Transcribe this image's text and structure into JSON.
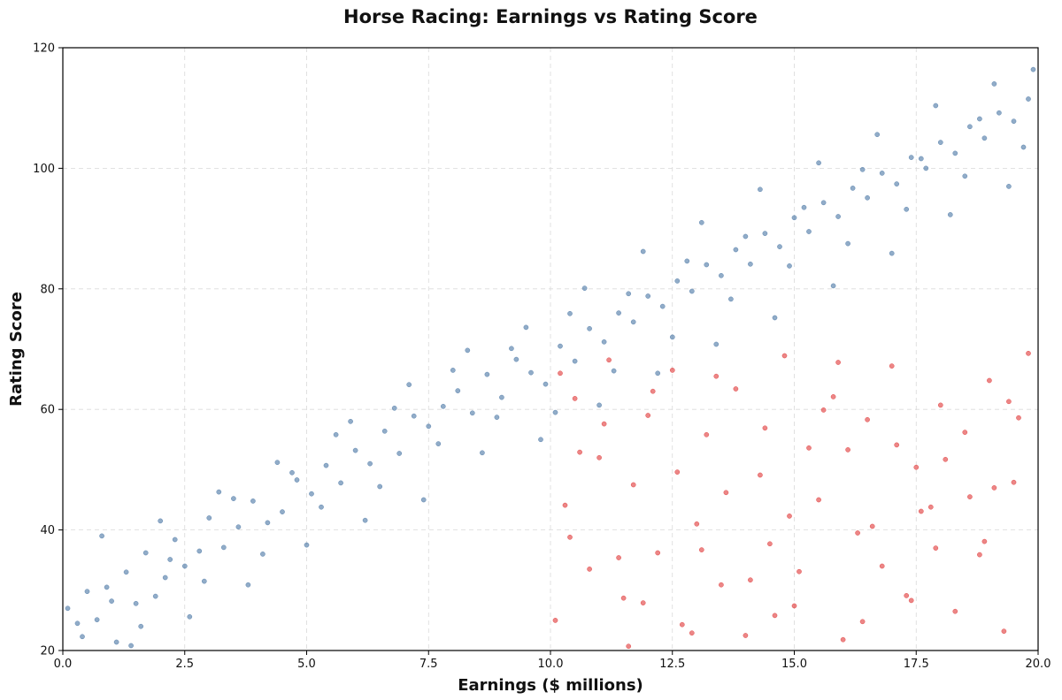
{
  "chart_data": {
    "type": "scatter",
    "title": "Horse Racing: Earnings vs Rating Score",
    "xlabel": "Earnings ($ millions)",
    "ylabel": "Rating Score",
    "xlim": [
      0,
      20
    ],
    "ylim": [
      20,
      120
    ],
    "x_ticks": [
      0.0,
      2.5,
      5.0,
      7.5,
      10.0,
      12.5,
      15.0,
      17.5,
      20.0
    ],
    "x_tick_labels": [
      "0.0",
      "2.5",
      "5.0",
      "7.5",
      "10.0",
      "12.5",
      "15.0",
      "17.5",
      "20.0"
    ],
    "y_ticks": [
      20,
      40,
      60,
      80,
      100,
      120
    ],
    "y_tick_labels": [
      "20",
      "40",
      "60",
      "80",
      "100",
      "120"
    ],
    "grid": true,
    "series": [
      {
        "color": "#4e79a7",
        "trend": "rating ≈ 25 + 4.5 × earnings, points clipped to axis range",
        "x": [
          0.1,
          0.3,
          0.5,
          0.7,
          0.9,
          1.1,
          1.3,
          1.5,
          1.7,
          1.9,
          2.1,
          2.3,
          2.5,
          2.8,
          3.0,
          3.3,
          3.6,
          3.9,
          4.2,
          4.5,
          4.8,
          5.1,
          5.4,
          5.7,
          6.0,
          6.3,
          6.6,
          6.9,
          7.2,
          7.5,
          7.8,
          8.1,
          8.4,
          8.7,
          9.0,
          9.3,
          9.6,
          9.9,
          10.2,
          10.5,
          10.8,
          11.1,
          11.4,
          11.7,
          12.0,
          12.3,
          12.6,
          12.9,
          13.2,
          13.5,
          13.8,
          14.1,
          14.4,
          14.7,
          15.0,
          15.3,
          15.6,
          15.9,
          16.2,
          16.5,
          16.8,
          17.1,
          17.4,
          17.7,
          18.0,
          18.3,
          18.6,
          18.9,
          19.2,
          19.5,
          19.8,
          0.4,
          1.0,
          1.6,
          2.2,
          2.9,
          3.5,
          4.1,
          4.7,
          5.3,
          5.9,
          6.5,
          7.1,
          7.7,
          8.3,
          8.9,
          9.5,
          10.1,
          10.7,
          11.3,
          11.9,
          12.5,
          13.1,
          13.7,
          14.3,
          14.9,
          15.5,
          16.1,
          16.7,
          17.3,
          17.9,
          18.5,
          19.1,
          19.7,
          0.8,
          2.0,
          3.2,
          4.4,
          5.6,
          6.8,
          8.0,
          9.2,
          10.4,
          11.6,
          12.8,
          14.0,
          15.2,
          16.4,
          17.6,
          18.8,
          19.9,
          1.4,
          2.6,
          3.8,
          5.0,
          6.2,
          7.4,
          8.6,
          9.8,
          11.0,
          12.2,
          13.4,
          14.6,
          15.8,
          17.0,
          18.2,
          19.4
        ],
        "y": [
          27.0,
          24.5,
          29.8,
          25.1,
          30.5,
          21.4,
          33.0,
          27.8,
          36.2,
          29.0,
          32.1,
          38.4,
          34.0,
          36.5,
          42.0,
          37.1,
          40.5,
          44.8,
          41.2,
          43.0,
          48.3,
          46.0,
          50.7,
          47.8,
          53.2,
          51.0,
          56.4,
          52.7,
          58.9,
          57.2,
          60.5,
          63.1,
          59.4,
          65.8,
          62.0,
          68.3,
          66.1,
          64.2,
          70.5,
          68.0,
          73.4,
          71.2,
          76.0,
          74.5,
          78.8,
          77.1,
          81.3,
          79.6,
          84.0,
          82.2,
          86.5,
          84.1,
          89.2,
          87.0,
          91.8,
          89.5,
          94.3,
          92.0,
          96.7,
          95.1,
          99.2,
          97.4,
          101.8,
          100.0,
          104.3,
          102.5,
          106.9,
          105.0,
          109.2,
          107.8,
          111.5,
          22.3,
          28.2,
          24.0,
          35.1,
          31.5,
          45.2,
          36.0,
          49.5,
          43.8,
          58.0,
          47.2,
          64.1,
          54.3,
          69.8,
          58.7,
          73.6,
          59.5,
          80.1,
          66.4,
          86.2,
          72.0,
          91.0,
          78.3,
          96.5,
          83.8,
          100.9,
          87.5,
          105.6,
          93.2,
          110.4,
          98.7,
          114.0,
          103.5,
          39.0,
          41.5,
          46.3,
          51.2,
          55.8,
          60.2,
          66.5,
          70.1,
          75.9,
          79.2,
          84.6,
          88.7,
          93.5,
          99.8,
          101.6,
          108.2,
          116.4,
          20.8,
          25.6,
          30.9,
          37.5,
          41.6,
          45.0,
          52.8,
          55.0,
          60.7,
          66.0,
          70.8,
          75.2,
          80.5,
          85.9,
          92.3,
          97.0
        ]
      },
      {
        "color": "#e03b3b",
        "trend": "scattered cluster for earnings 10–20, rating 20–70",
        "x": [
          10.1,
          10.3,
          10.5,
          10.8,
          11.0,
          11.2,
          11.5,
          11.7,
          12.0,
          12.2,
          12.5,
          12.7,
          13.0,
          13.2,
          13.5,
          13.8,
          14.0,
          14.3,
          14.5,
          14.8,
          15.0,
          15.3,
          15.5,
          15.8,
          16.0,
          16.3,
          16.5,
          16.8,
          17.0,
          17.3,
          17.5,
          17.8,
          18.0,
          18.3,
          18.5,
          18.8,
          19.0,
          19.3,
          19.5,
          19.8,
          10.4,
          11.1,
          11.9,
          12.6,
          13.4,
          14.1,
          14.9,
          15.6,
          16.4,
          17.1,
          17.9,
          18.6,
          19.4,
          10.6,
          11.4,
          12.1,
          12.9,
          13.6,
          14.4,
          15.1,
          15.9,
          16.6,
          17.4,
          18.1,
          18.9,
          19.6,
          10.2,
          11.6,
          13.1,
          14.6,
          16.1,
          17.6,
          19.1
        ],
        "y": [
          25.0,
          44.1,
          61.8,
          33.5,
          52.0,
          68.2,
          28.7,
          47.5,
          59.0,
          36.2,
          66.5,
          24.3,
          41.0,
          55.8,
          30.9,
          63.4,
          22.5,
          49.1,
          37.7,
          68.9,
          27.4,
          53.6,
          45.0,
          62.1,
          21.8,
          39.5,
          58.3,
          34.0,
          67.2,
          29.1,
          50.4,
          43.8,
          60.7,
          26.5,
          56.2,
          35.9,
          64.8,
          23.2,
          47.9,
          69.3,
          38.8,
          57.6,
          27.9,
          49.6,
          65.5,
          31.7,
          42.3,
          59.9,
          24.8,
          54.1,
          37.0,
          45.5,
          61.3,
          52.9,
          35.4,
          63.0,
          22.9,
          46.2,
          56.9,
          33.1,
          67.8,
          40.6,
          28.3,
          51.7,
          38.1,
          58.6,
          66.0,
          20.7,
          36.7,
          25.8,
          53.3,
          43.1,
          47.0
        ]
      }
    ]
  }
}
